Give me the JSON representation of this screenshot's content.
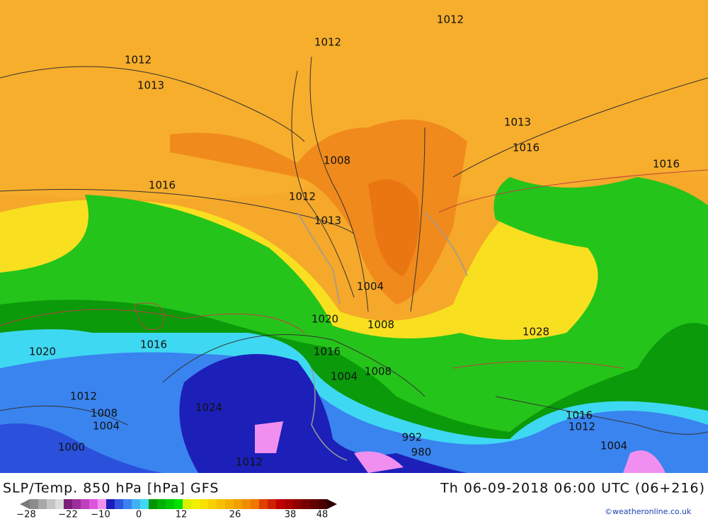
{
  "map": {
    "isobar_labels": [
      "1012",
      "1012",
      "1012",
      "1012",
      "1013",
      "1013",
      "1013",
      "1016",
      "1016",
      "1016",
      "1016",
      "1016",
      "1016",
      "1008",
      "1008",
      "1008",
      "1008",
      "1012",
      "1012",
      "1004",
      "1004",
      "1004",
      "1004",
      "1020",
      "1020",
      "1028",
      "1024",
      "992",
      "980",
      "1000",
      "1012"
    ]
  },
  "footer": {
    "title": "SLP/Temp. 850 hPa [hPa] GFS",
    "datetime": "Th 06-09-2018 06:00 UTC (06+216)",
    "credit": "©weatheronline.co.uk",
    "colorbar": {
      "labels": [
        "−28",
        "−22",
        "−10",
        "0",
        "12",
        "26",
        "38",
        "48"
      ],
      "colors": [
        "#8c8c8c",
        "#a8a8a8",
        "#c4c4c4",
        "#dcdcdc",
        "#7a1f7a",
        "#9c2f9c",
        "#bf40bf",
        "#dd55dd",
        "#f28ef2",
        "#1c1cb8",
        "#2f55e0",
        "#3a82f0",
        "#40b2f4",
        "#40d8f4",
        "#009600",
        "#00b000",
        "#00c800",
        "#00e000",
        "#d8f000",
        "#f0f000",
        "#f8e000",
        "#f8d000",
        "#f6c000",
        "#f4b000",
        "#f2a000",
        "#f08c00",
        "#ee7800",
        "#e04000",
        "#d02000",
        "#c00000",
        "#a80000",
        "#900000",
        "#780000",
        "#600000",
        "#4a0000"
      ]
    }
  }
}
